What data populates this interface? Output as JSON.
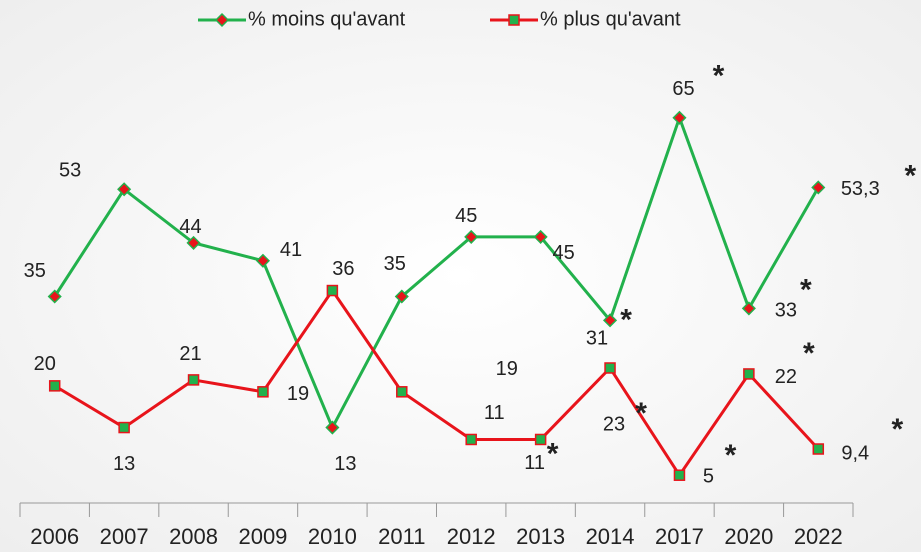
{
  "chart_data": {
    "type": "line",
    "categories": [
      "2006",
      "2007",
      "2008",
      "2009",
      "2010",
      "2011",
      "2012",
      "2013",
      "2014",
      "2017",
      "2020",
      "2022"
    ],
    "ylim": [
      0,
      70
    ],
    "legend": "top",
    "series": [
      {
        "name": "% moins qu'avant",
        "color": "#22b14c",
        "marker_fill": "#e8141b",
        "marker": "diamond",
        "values": [
          35,
          53,
          44,
          41,
          13,
          35,
          45,
          45,
          31,
          65,
          33,
          53.3
        ],
        "value_labels": [
          "35",
          "53",
          "44",
          "41",
          "13",
          "35",
          "45",
          "45",
          "31",
          "65",
          "33",
          "53,3"
        ],
        "notes": [
          null,
          null,
          null,
          null,
          null,
          null,
          null,
          null,
          "*",
          "*",
          "*",
          "*"
        ]
      },
      {
        "name": "% plus qu'avant",
        "color": "#e8141b",
        "marker_fill": "#22b14c",
        "marker": "square",
        "values": [
          20,
          13,
          21,
          19,
          36,
          19,
          11,
          11,
          23,
          5,
          22,
          9.4
        ],
        "value_labels": [
          "20",
          "13",
          "21",
          "19",
          "36",
          "19",
          "11",
          "11",
          "23",
          "5",
          "22",
          "9,4"
        ],
        "notes": [
          null,
          null,
          null,
          null,
          null,
          null,
          null,
          "*",
          "*",
          "*",
          "*",
          "*"
        ]
      }
    ]
  }
}
